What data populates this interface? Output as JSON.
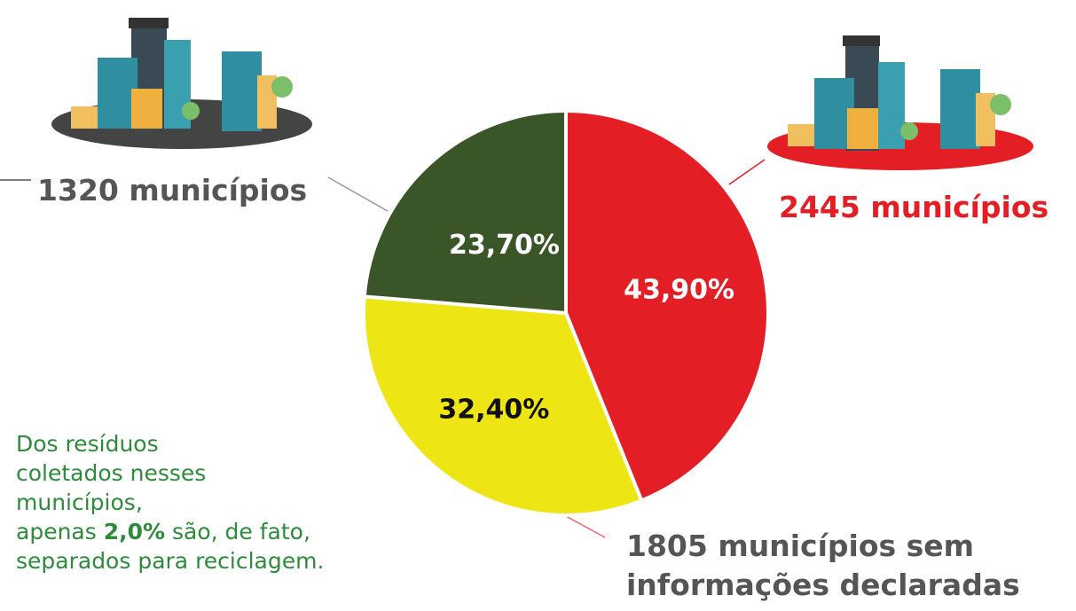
{
  "chart_data": {
    "type": "pie",
    "categories": [
      "2445 municípios",
      "1805 municípios sem informações declaradas",
      "1320 municípios"
    ],
    "values": [
      43.9,
      32.4,
      23.7
    ],
    "value_labels": [
      "43,90%",
      "32,40%",
      "23,70%"
    ],
    "colors": [
      "#e31e24",
      "#ede614",
      "#3a5527"
    ],
    "annotation": {
      "lines": [
        "Dos resíduos",
        "coletados nesses",
        "municípios,"
      ],
      "before": "apenas",
      "highlight": "2,0%",
      "after": "são, de fato,",
      "last": "separados para reciclagem."
    }
  }
}
